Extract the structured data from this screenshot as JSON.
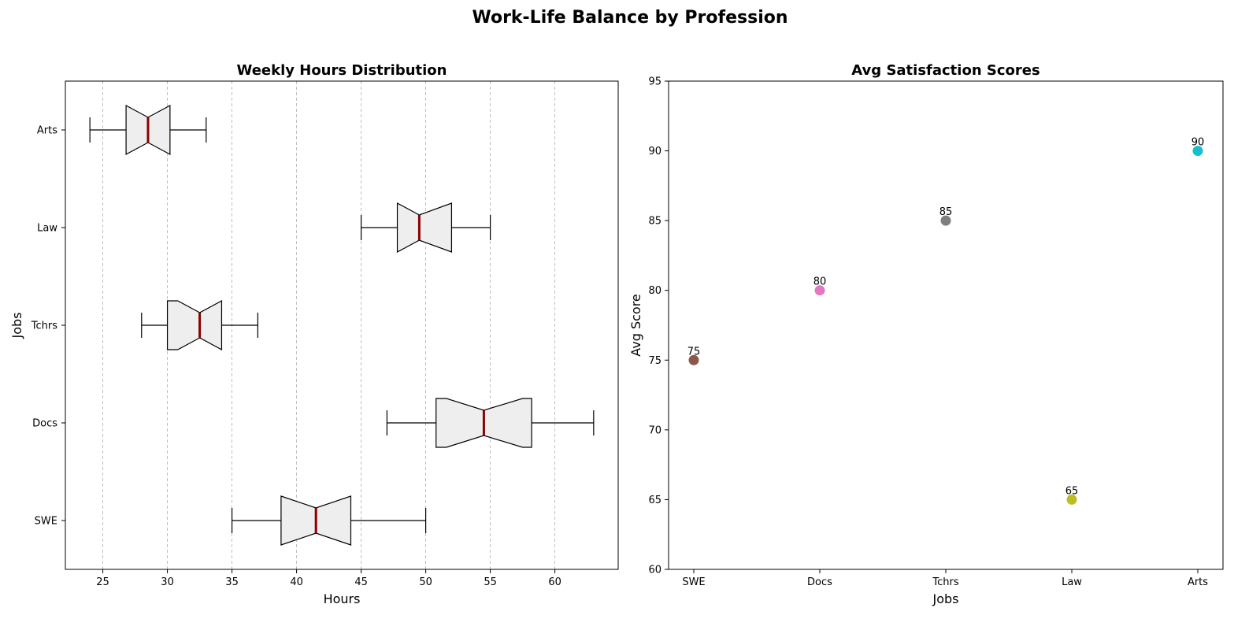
{
  "figure": {
    "title": "Work-Life Balance by Profession"
  },
  "chart_data": [
    {
      "type": "boxplot",
      "title": "Weekly Hours Distribution",
      "xlabel": "Hours",
      "ylabel": "Jobs",
      "orientation": "horizontal",
      "notched": true,
      "categories": [
        "SWE",
        "Docs",
        "Tchrs",
        "Law",
        "Arts"
      ],
      "xlim": [
        22.1,
        64.9
      ],
      "xticks": [
        25,
        30,
        35,
        40,
        45,
        50,
        55,
        60
      ],
      "grid": "x-dashed",
      "box_color": "#eeeeee",
      "median_color": "#8b0000",
      "boxes": [
        {
          "label": "SWE",
          "whislo": 35,
          "q1": 38.8,
          "med": 41.5,
          "q3": 44.2,
          "whishi": 50,
          "notch_lo": 38.8,
          "notch_hi": 44.2
        },
        {
          "label": "Docs",
          "whislo": 47,
          "q1": 50.8,
          "med": 54.5,
          "q3": 58.2,
          "whishi": 63,
          "notch_lo": 51.6,
          "notch_hi": 57.5
        },
        {
          "label": "Tchrs",
          "whislo": 28,
          "q1": 30.0,
          "med": 32.5,
          "q3": 34.2,
          "whishi": 37,
          "notch_lo": 30.8,
          "notch_hi": 34.2
        },
        {
          "label": "Law",
          "whislo": 45,
          "q1": 47.8,
          "med": 49.5,
          "q3": 52.0,
          "whishi": 55,
          "notch_lo": 47.8,
          "notch_hi": 52.0
        },
        {
          "label": "Arts",
          "whislo": 24,
          "q1": 26.8,
          "med": 28.5,
          "q3": 30.2,
          "whishi": 33,
          "notch_lo": 26.8,
          "notch_hi": 30.2
        }
      ]
    },
    {
      "type": "scatter",
      "title": "Avg Satisfaction Scores",
      "xlabel": "Jobs",
      "ylabel": "Avg Score",
      "categories": [
        "SWE",
        "Docs",
        "Tchrs",
        "Law",
        "Arts"
      ],
      "values": [
        75,
        80,
        85,
        65,
        90
      ],
      "point_labels": [
        "75",
        "80",
        "85",
        "65",
        "90"
      ],
      "colors": [
        "#8c564b",
        "#e377c2",
        "#7f7f7f",
        "#bcbd22",
        "#17becf"
      ],
      "ylim": [
        60,
        95
      ],
      "yticks": [
        60,
        65,
        70,
        75,
        80,
        85,
        90,
        95
      ],
      "grid": "off"
    }
  ]
}
